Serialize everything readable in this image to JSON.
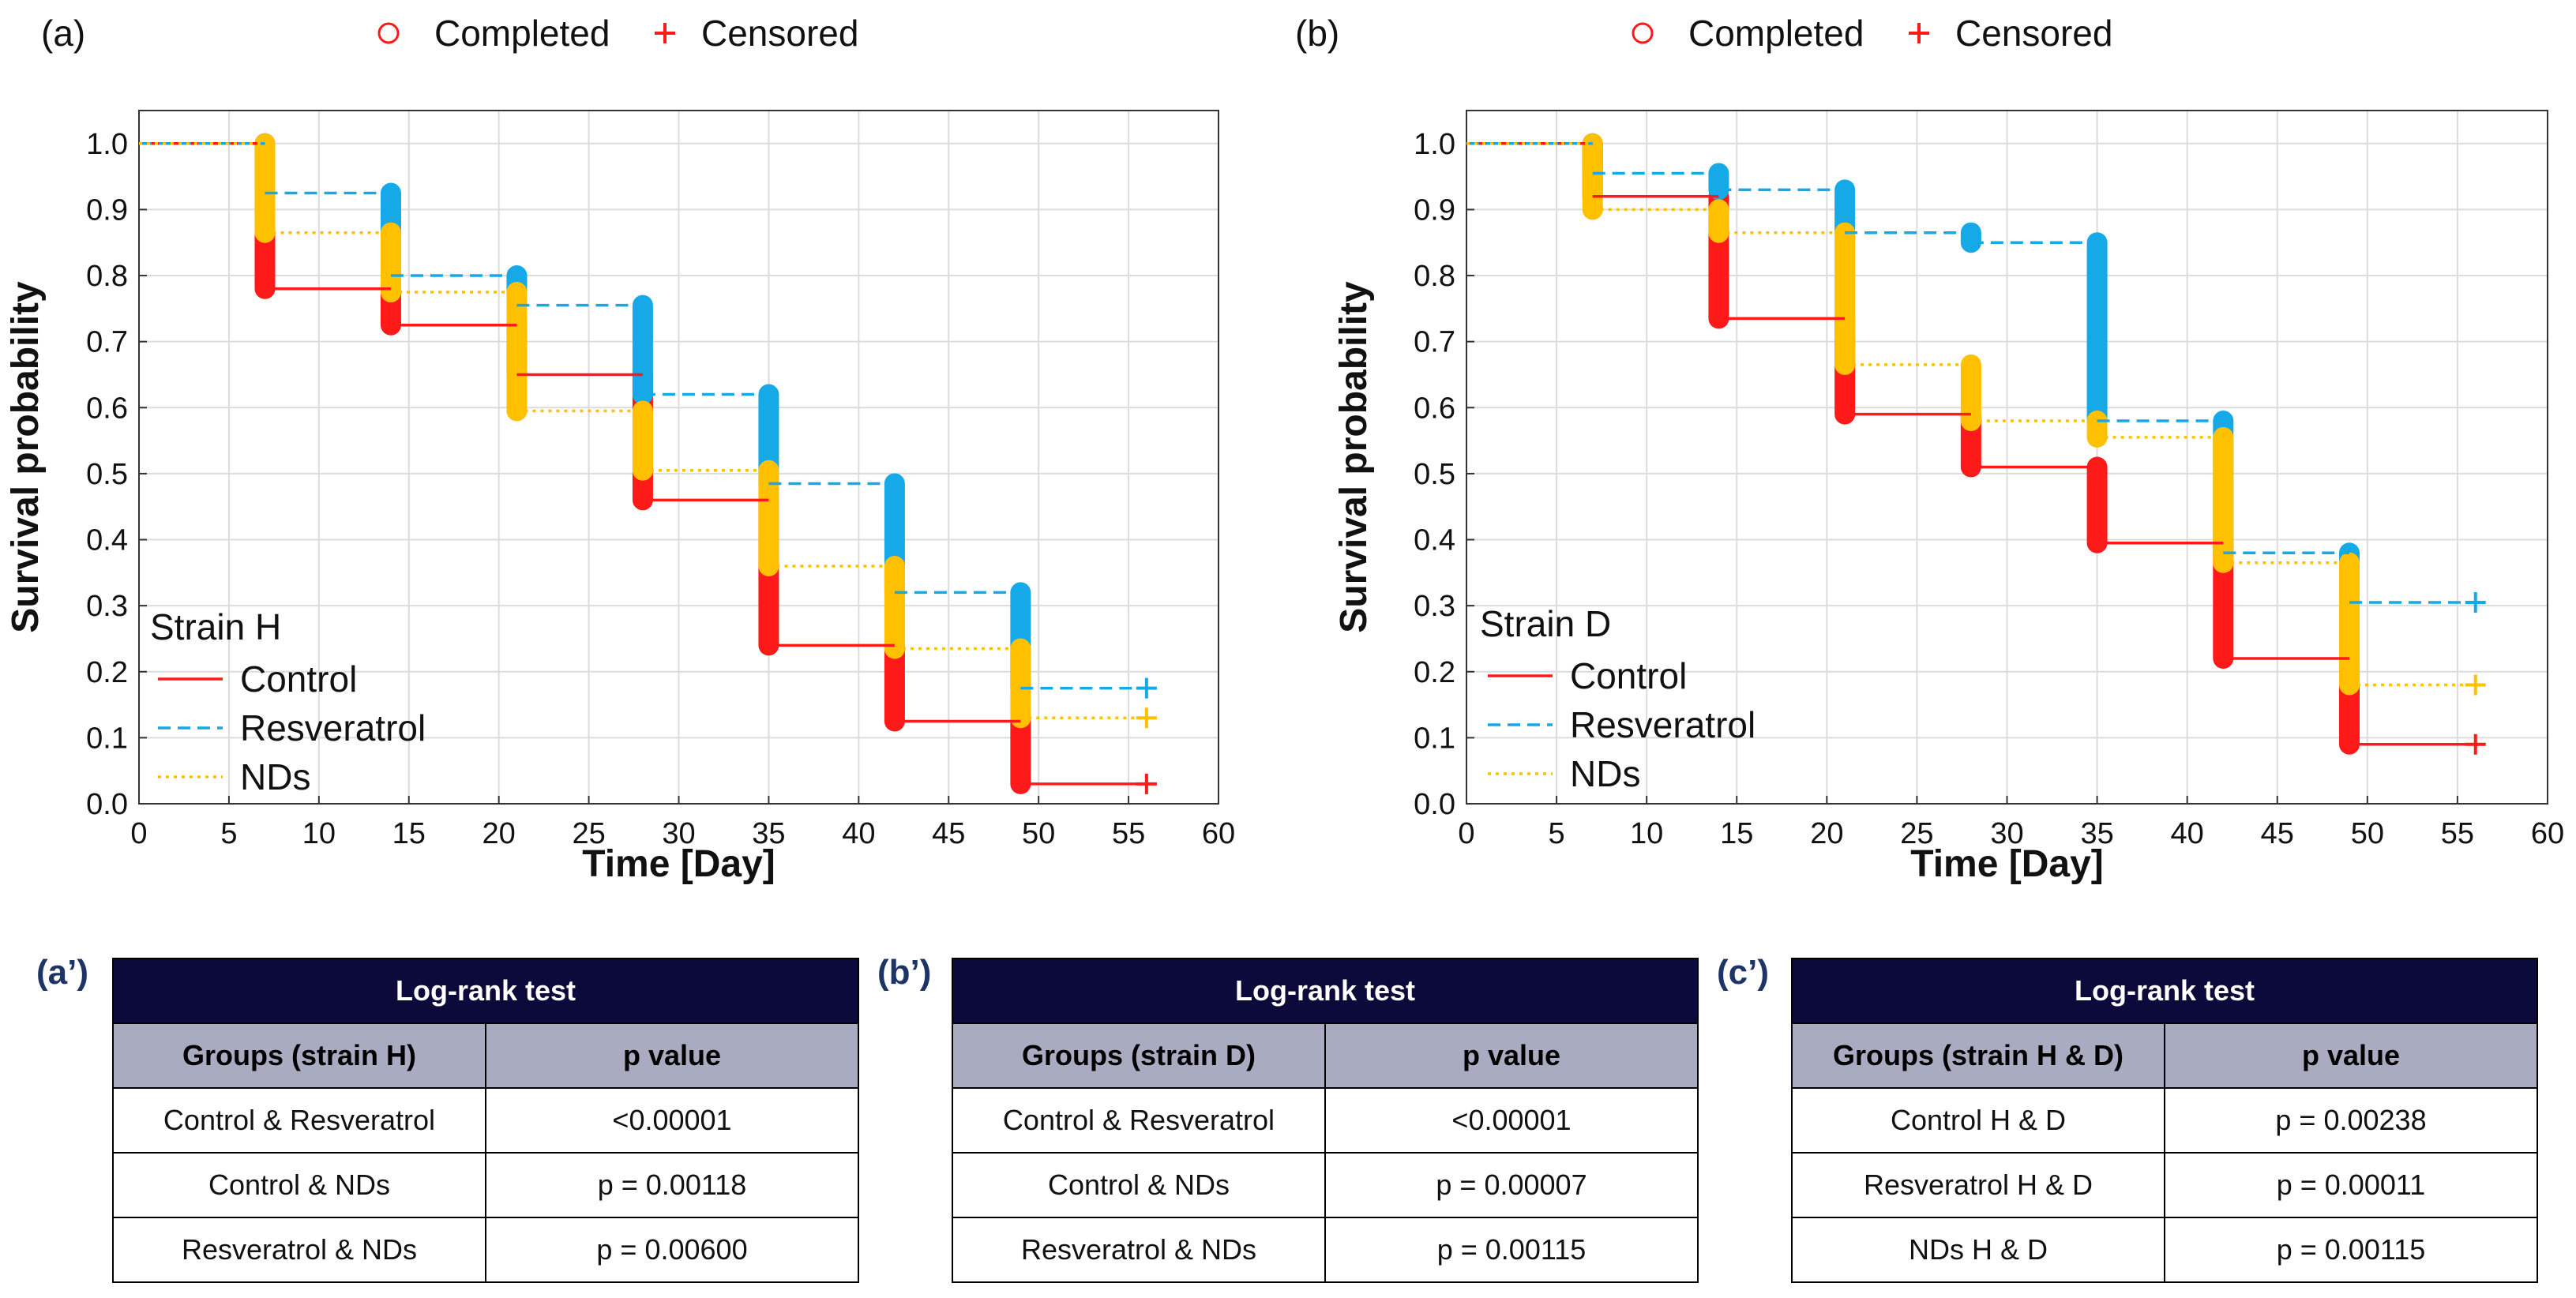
{
  "marker_legend": {
    "completed": "Completed",
    "censored": "Censored"
  },
  "colors": {
    "control": "#ff1a1a",
    "resveratrol": "#15a9e8",
    "nds": "#ffc000",
    "table_title": "#0b0a3a",
    "table_head": "#a9abc1",
    "tag": "#1f3466"
  },
  "chart_data": [
    {
      "panel": "(a)",
      "type": "line",
      "subtype": "kaplan-meier step",
      "strain_label": "Strain H",
      "xlabel": "Time [Day]",
      "ylabel": "Survival probability",
      "xlim": [
        0,
        60
      ],
      "ylim": [
        0,
        1.05
      ],
      "xticks": [
        "0",
        "5",
        "10",
        "15",
        "20",
        "25",
        "30",
        "35",
        "40",
        "45",
        "50",
        "55",
        "60"
      ],
      "yticks": [
        "0.0",
        "0.1",
        "0.2",
        "0.3",
        "0.4",
        "0.5",
        "0.6",
        "0.7",
        "0.8",
        "0.9",
        "1.0"
      ],
      "grid": true,
      "legend_position": "bottom-left",
      "series": [
        {
          "name": "Control",
          "key": "control",
          "style": "solid",
          "x": [
            0,
            7,
            14,
            21,
            28,
            35,
            42,
            49
          ],
          "y": [
            1.0,
            0.78,
            0.725,
            0.65,
            0.46,
            0.24,
            0.125,
            0.03
          ],
          "censored": {
            "x": 56,
            "y": 0.03
          }
        },
        {
          "name": "Resveratrol",
          "key": "resveratrol",
          "style": "dashed",
          "x": [
            0,
            7,
            14,
            21,
            28,
            35,
            42,
            49
          ],
          "y": [
            1.0,
            0.925,
            0.8,
            0.755,
            0.62,
            0.485,
            0.32,
            0.175
          ],
          "censored": {
            "x": 56,
            "y": 0.175
          }
        },
        {
          "name": "NDs",
          "key": "nds",
          "style": "dotted",
          "x": [
            0,
            7,
            14,
            21,
            28,
            35,
            42,
            49
          ],
          "y": [
            1.0,
            0.865,
            0.775,
            0.595,
            0.505,
            0.36,
            0.235,
            0.13
          ],
          "censored": {
            "x": 56,
            "y": 0.13
          }
        }
      ]
    },
    {
      "panel": "(b)",
      "type": "line",
      "subtype": "kaplan-meier step",
      "strain_label": "Strain D",
      "xlabel": "Time [Day]",
      "ylabel": "Survival probability",
      "xlim": [
        0,
        60
      ],
      "ylim": [
        0,
        1.05
      ],
      "xticks": [
        "0",
        "5",
        "10",
        "15",
        "20",
        "25",
        "30",
        "35",
        "40",
        "45",
        "50",
        "55",
        "60"
      ],
      "yticks": [
        "0.0",
        "0.1",
        "0.2",
        "0.3",
        "0.4",
        "0.5",
        "0.6",
        "0.7",
        "0.8",
        "0.9",
        "1.0"
      ],
      "grid": true,
      "legend_position": "bottom-left",
      "series": [
        {
          "name": "Control",
          "key": "control",
          "style": "solid",
          "x": [
            0,
            7,
            14,
            21,
            28,
            35,
            42,
            49
          ],
          "y": [
            1.0,
            0.92,
            0.735,
            0.59,
            0.51,
            0.395,
            0.22,
            0.09
          ],
          "censored": {
            "x": 56,
            "y": 0.09
          }
        },
        {
          "name": "Resveratrol",
          "key": "resveratrol",
          "style": "dashed",
          "x": [
            0,
            7,
            14,
            21,
            28,
            35,
            42,
            49
          ],
          "y": [
            1.0,
            0.955,
            0.93,
            0.865,
            0.85,
            0.58,
            0.38,
            0.305
          ],
          "censored": {
            "x": 56,
            "y": 0.305
          }
        },
        {
          "name": "NDs",
          "key": "nds",
          "style": "dotted",
          "x": [
            0,
            7,
            14,
            21,
            28,
            35,
            42,
            49
          ],
          "y": [
            1.0,
            0.9,
            0.865,
            0.665,
            0.58,
            0.555,
            0.365,
            0.18
          ],
          "censored": {
            "x": 56,
            "y": 0.18
          }
        }
      ]
    }
  ],
  "tables": [
    {
      "tag": "(a’)",
      "title": "Log-rank test",
      "col1": "Groups (strain H)",
      "col2": "p value",
      "rows": [
        [
          "Control & Resveratrol",
          "<0.00001"
        ],
        [
          "Control & NDs",
          "p = 0.00118"
        ],
        [
          "Resveratrol & NDs",
          "p = 0.00600"
        ]
      ]
    },
    {
      "tag": "(b’)",
      "title": "Log-rank test",
      "col1": "Groups (strain D)",
      "col2": "p value",
      "rows": [
        [
          "Control & Resveratrol",
          "<0.00001"
        ],
        [
          "Control & NDs",
          "p = 0.00007"
        ],
        [
          "Resveratrol & NDs",
          "p = 0.00115"
        ]
      ]
    },
    {
      "tag": "(c’)",
      "title": "Log-rank test",
      "col1": "Groups (strain H & D)",
      "col2": "p value",
      "rows": [
        [
          "Control H & D",
          "p = 0.00238"
        ],
        [
          "Resveratrol H & D",
          "p = 0.00011"
        ],
        [
          "NDs H & D",
          "p = 0.00115"
        ]
      ]
    }
  ]
}
